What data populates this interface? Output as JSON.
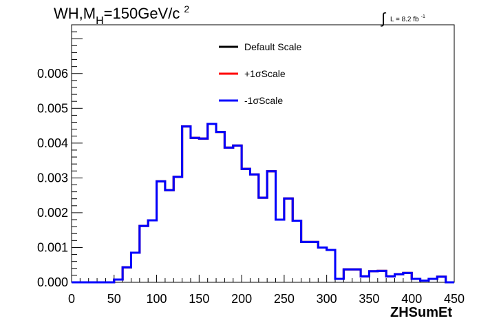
{
  "chart_data": {
    "type": "line",
    "title": "WH,M",
    "title_sub": "H",
    "title_rest": "=150GeV/c",
    "title_sup": "2",
    "lumi_label": "L = 8.2 fb",
    "lumi_sup": "-1",
    "xlabel": "ZHSumEt",
    "ylabel": "",
    "xlim": [
      0,
      450
    ],
    "ylim": [
      0,
      0.0074
    ],
    "x_ticks": [
      "0",
      "50",
      "100",
      "150",
      "200",
      "250",
      "300",
      "350",
      "400",
      "450"
    ],
    "y_ticks": [
      "0.000",
      "0.001",
      "0.002",
      "0.003",
      "0.004",
      "0.005",
      "0.006"
    ],
    "grid": false,
    "legend_position": "top-center",
    "bin_width": 10,
    "bin_low_edges": [
      0,
      10,
      20,
      30,
      40,
      50,
      60,
      70,
      80,
      90,
      100,
      110,
      120,
      130,
      140,
      150,
      160,
      170,
      180,
      190,
      200,
      210,
      220,
      230,
      240,
      250,
      260,
      270,
      280,
      290,
      300,
      310,
      320,
      330,
      340,
      350,
      360,
      370,
      380,
      390,
      400,
      410,
      420,
      430,
      440
    ],
    "series": [
      {
        "name": "Default Scale",
        "color": "#000000",
        "values": [
          0,
          0,
          0,
          0,
          0,
          8e-05,
          0.00043,
          0.00085,
          0.00162,
          0.00178,
          0.0029,
          0.00265,
          0.00303,
          0.00448,
          0.00415,
          0.00413,
          0.00455,
          0.00432,
          0.00387,
          0.00393,
          0.00326,
          0.0031,
          0.00243,
          0.00319,
          0.0018,
          0.00241,
          0.00177,
          0.00116,
          0.00116,
          0.001,
          0.00093,
          0.0001,
          0.00037,
          0.00037,
          0.00017,
          0.00032,
          0.00033,
          0.00017,
          0.00023,
          0.00027,
          0.0001,
          5e-05,
          0.0001,
          0.00016,
          0
        ]
      },
      {
        "name": "+1σScale",
        "color": "#ff0000",
        "values": [
          0,
          0,
          0,
          0,
          0,
          8e-05,
          0.00043,
          0.00085,
          0.00162,
          0.00178,
          0.0029,
          0.00265,
          0.00303,
          0.00448,
          0.00415,
          0.00413,
          0.00455,
          0.00432,
          0.00387,
          0.00393,
          0.00326,
          0.0031,
          0.00243,
          0.00319,
          0.0018,
          0.00241,
          0.00177,
          0.00116,
          0.00116,
          0.001,
          0.00093,
          0.0001,
          0.00037,
          0.00037,
          0.00017,
          0.00032,
          0.00033,
          0.00017,
          0.00023,
          0.00027,
          0.0001,
          5e-05,
          0.0001,
          0.00016,
          0
        ]
      },
      {
        "name": "-1σScale",
        "color": "#0000ff",
        "values": [
          0,
          0,
          0,
          0,
          0,
          8e-05,
          0.00043,
          0.00085,
          0.00162,
          0.00178,
          0.0029,
          0.00265,
          0.00303,
          0.00448,
          0.00415,
          0.00413,
          0.00455,
          0.00432,
          0.00387,
          0.00393,
          0.00326,
          0.0031,
          0.00243,
          0.00319,
          0.0018,
          0.00241,
          0.00177,
          0.00116,
          0.00116,
          0.001,
          0.00093,
          0.0001,
          0.00037,
          0.00037,
          0.00017,
          0.00032,
          0.00033,
          0.00017,
          0.00023,
          0.00027,
          0.0001,
          5e-05,
          0.0001,
          0.00016,
          0
        ]
      }
    ]
  }
}
